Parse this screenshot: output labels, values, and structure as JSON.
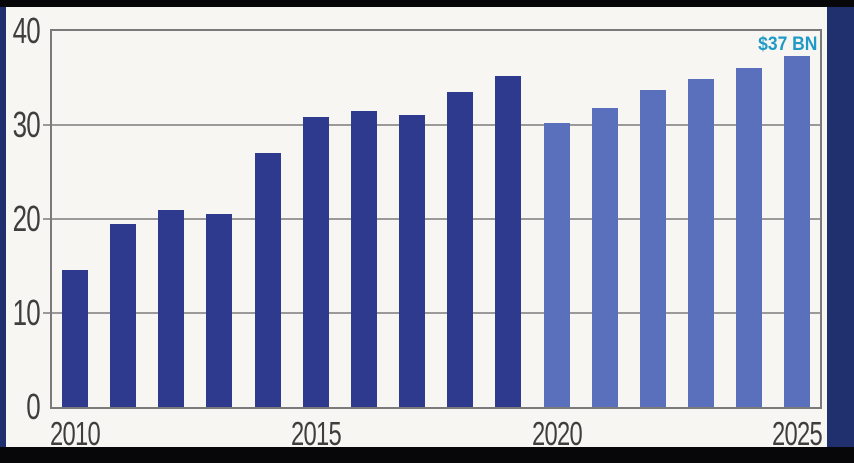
{
  "frame": {
    "navy_color": "#20306f",
    "black_color": "#070709",
    "content_background": "#f7f6f2"
  },
  "chart_data": {
    "type": "bar",
    "title": "",
    "categories": [
      "2010",
      "2011",
      "2012",
      "2013",
      "2014",
      "2015",
      "2016",
      "2017",
      "2018",
      "2019",
      "2020",
      "2021",
      "2022",
      "2023",
      "2024",
      "2025"
    ],
    "values": [
      14.6,
      19.5,
      21.0,
      20.5,
      27.0,
      30.8,
      31.5,
      31.1,
      33.5,
      35.2,
      30.2,
      31.8,
      33.7,
      34.9,
      36.1,
      37.3
    ],
    "bar_groups": [
      "actual",
      "actual",
      "actual",
      "actual",
      "actual",
      "actual",
      "actual",
      "actual",
      "actual",
      "actual",
      "projected",
      "projected",
      "projected",
      "projected",
      "projected",
      "projected"
    ],
    "colors": {
      "actual": "#2e3a8d",
      "projected": "#5b70bd"
    },
    "ylim": [
      0,
      40
    ],
    "yticks": [
      0,
      10,
      20,
      30,
      40
    ],
    "x_tick_labels": [
      {
        "label": "2010",
        "index": 0
      },
      {
        "label": "2015",
        "index": 5
      },
      {
        "label": "2020",
        "index": 10
      },
      {
        "label": "2025",
        "index": 15
      }
    ],
    "grid": "horizontal",
    "legend": "none",
    "annotation": {
      "text": "$37 BN",
      "color": "#1f9ac6",
      "bar_index": 15
    }
  },
  "styles": {
    "grid_color": "#9a9a9a",
    "plot_border_color": "#7a7a7a",
    "axis_label_color": "#3e3e3e"
  }
}
